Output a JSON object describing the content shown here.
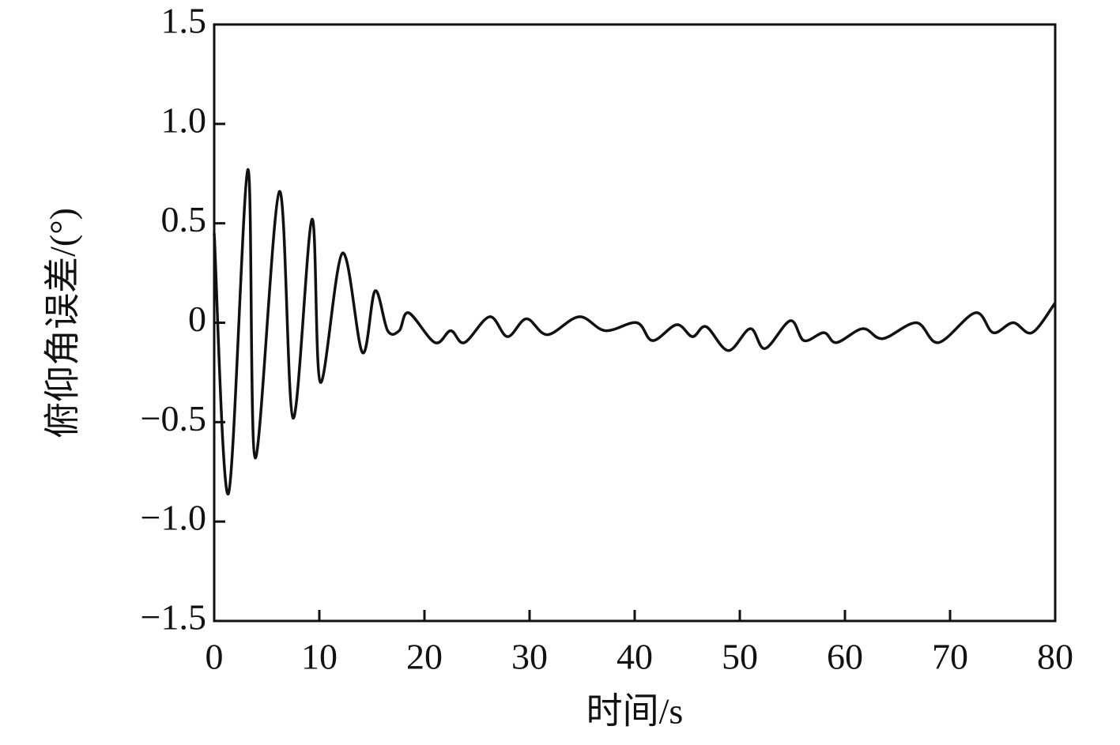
{
  "chart_data": {
    "type": "line",
    "x_label": "时间/s",
    "y_label": "俯仰角误差/(°)",
    "xlim": [
      0,
      80
    ],
    "xticks": [
      0,
      10,
      20,
      30,
      40,
      50,
      60,
      70,
      80
    ],
    "ylim": [
      -1.5,
      1.5
    ],
    "yticks": [
      {
        "value": -1.5,
        "label": "−1.5"
      },
      {
        "value": -1,
        "label": "−1.0"
      },
      {
        "value": -0.5,
        "label": "−0.5"
      },
      0,
      0.5,
      {
        "value": 1,
        "label": "1.0"
      },
      1.5
    ],
    "grid": false,
    "series": [
      {
        "color": "#111111",
        "x": [
          0,
          1.35,
          3.2,
          3.9,
          6.2,
          7.5,
          9.3,
          10.1,
          12.2,
          14.1,
          15.3,
          16.5,
          17.6,
          18.5,
          21,
          22.5,
          23.8,
          26.2,
          27.9,
          29.7,
          31.7,
          34.7,
          37.2,
          40.2,
          41.7,
          44,
          45.5,
          46.8,
          48.9,
          51,
          52.4,
          54.8,
          56.1,
          58,
          59.2,
          61.7,
          63.6,
          66.8,
          68.9,
          72.4,
          74.1,
          76,
          77.8,
          80
        ],
        "values": [
          0.45,
          -0.86,
          0.77,
          -0.68,
          0.66,
          -0.48,
          0.52,
          -0.3,
          0.35,
          -0.15,
          0.16,
          -0.04,
          -0.04,
          0.05,
          -0.1,
          -0.04,
          -0.1,
          0.03,
          -0.07,
          0.02,
          -0.06,
          0.03,
          -0.04,
          0.0,
          -0.09,
          -0.01,
          -0.07,
          -0.02,
          -0.14,
          -0.03,
          -0.13,
          0.01,
          -0.09,
          -0.05,
          -0.1,
          -0.03,
          -0.08,
          0.0,
          -0.1,
          0.05,
          -0.05,
          0.0,
          -0.05,
          0.1
        ]
      }
    ]
  }
}
